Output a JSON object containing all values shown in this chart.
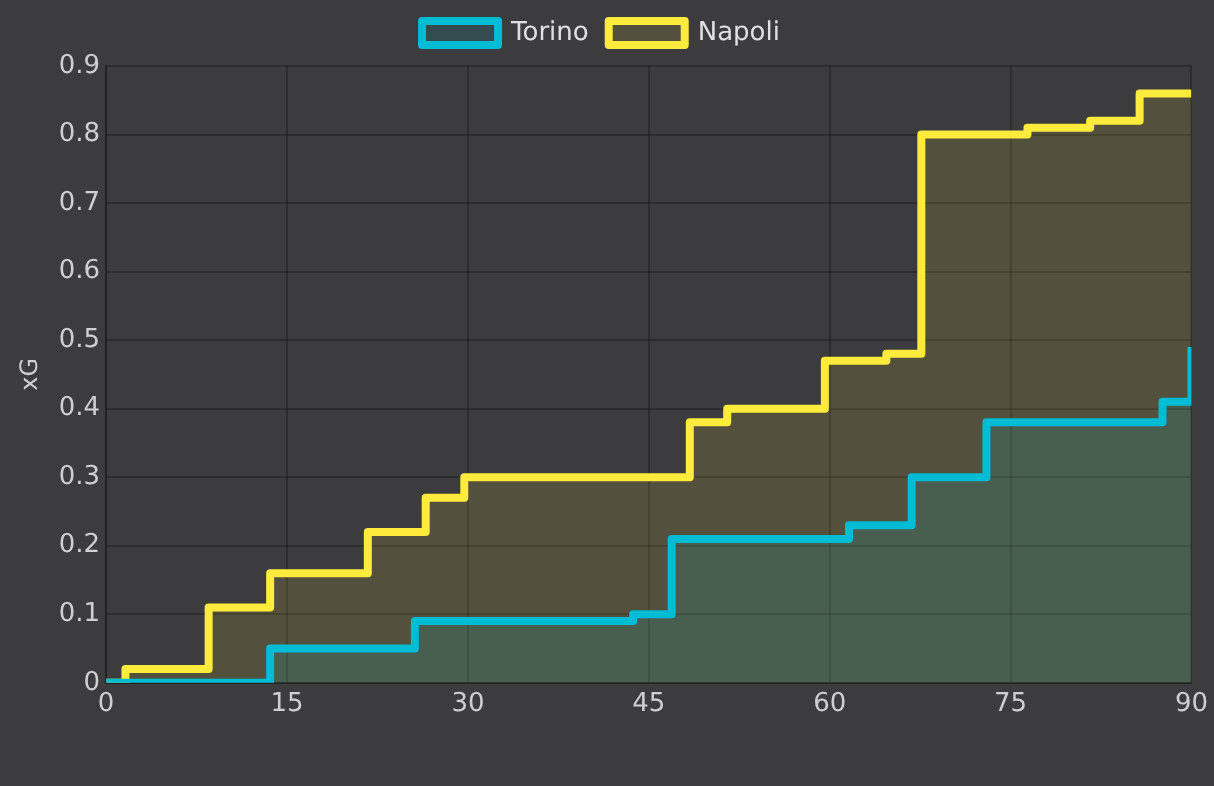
{
  "chart_data": {
    "type": "step",
    "ylabel": "xG",
    "xlim": [
      0,
      90
    ],
    "xticks": [
      0,
      15,
      30,
      45,
      60,
      75,
      90
    ],
    "ylim": [
      0,
      0.9
    ],
    "yticks": [
      0,
      0.1,
      0.2,
      0.3,
      0.4,
      0.5,
      0.6,
      0.7,
      0.8,
      0.9
    ],
    "grid": true,
    "legend": "top",
    "marker": "none",
    "series": [
      {
        "name": "Torino",
        "color": "#00bcd4",
        "x": [
          0,
          13.6,
          25.6,
          43.7,
          46.9,
          61.6,
          66.8,
          73,
          87.6,
          90
        ],
        "values": [
          0,
          0.05,
          0.09,
          0.1,
          0.21,
          0.23,
          0.3,
          0.38,
          0.41,
          0.49
        ]
      },
      {
        "name": "Napoli",
        "color": "#ffeb3b",
        "x": [
          0,
          1.6,
          8.5,
          13.6,
          21.7,
          26.5,
          29.7,
          48.4,
          51.5,
          59.6,
          64.7,
          67.6,
          76.4,
          81.6,
          85.7,
          90
        ],
        "values": [
          0,
          0.02,
          0.11,
          0.16,
          0.22,
          0.27,
          0.3,
          0.38,
          0.4,
          0.47,
          0.48,
          0.8,
          0.81,
          0.82,
          0.86,
          0.86
        ]
      }
    ]
  }
}
